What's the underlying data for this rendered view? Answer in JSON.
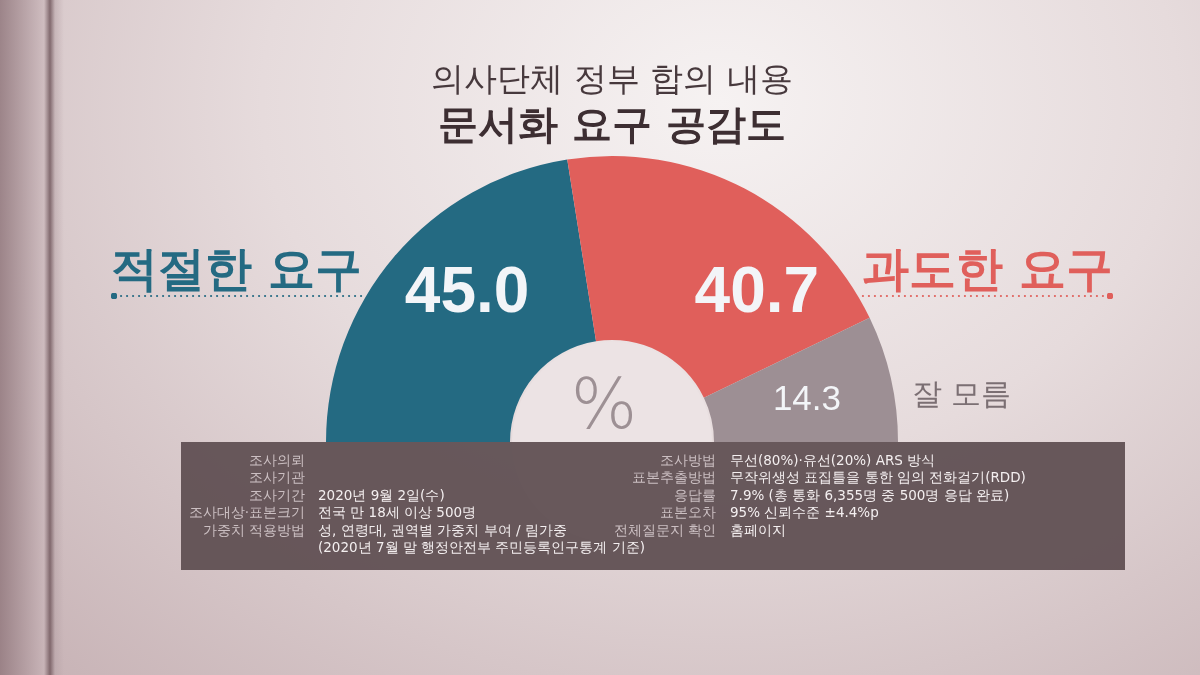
{
  "chart_data": {
    "type": "donut",
    "title": "의사단체 정부 합의 내용",
    "subtitle": "문서화 요구 공감도",
    "categories": [
      "적절한 요구",
      "과도한 요구",
      "잘 모름"
    ],
    "values": [
      45.0,
      40.7,
      14.3
    ],
    "value_labels": [
      "45.0",
      "40.7",
      "14.3"
    ],
    "colors": [
      "#246a82",
      "#e05f5b",
      "#9d8f94"
    ],
    "annotations": [
      "%",
      "조사의뢰",
      "조사기관",
      "조사기간",
      "2020년 9월 2일(수)",
      "조사대상·표본크기",
      "전국 만 18세 이상 500명",
      "가중치 적용방법",
      "성, 연령대, 권역별 가중치 부여 / 림가중",
      "(2020년 7월 말 행정안전부 주민등록인구통계 기준)",
      "조사방법",
      "무선(80%)·유선(20%) ARS 방식",
      "표본추출방법",
      "무작위생성 표집틀을 통한 임의 전화걸기(RDD)",
      "응답률",
      "7.9% (총 통화 6,355명 중 500명 응답 완료)",
      "표본오차",
      "95% 신뢰수준 ±4.4%p",
      "전체질문지 확인",
      "홈페이지"
    ]
  }
}
